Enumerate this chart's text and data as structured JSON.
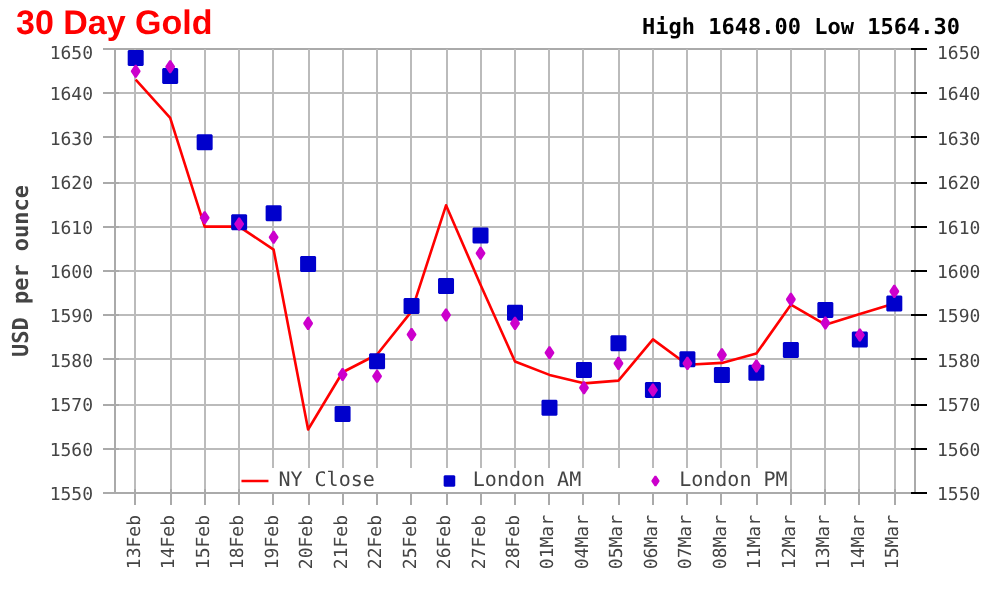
{
  "chart_data": {
    "type": "line",
    "title": "30 Day Gold",
    "subtitle": "High 1648.00 Low 1564.30",
    "ylabel": "USD per ounce",
    "categories": [
      "13Feb",
      "14Feb",
      "15Feb",
      "18Feb",
      "19Feb",
      "20Feb",
      "21Feb",
      "22Feb",
      "25Feb",
      "26Feb",
      "27Feb",
      "28Feb",
      "01Mar",
      "04Mar",
      "05Mar",
      "06Mar",
      "07Mar",
      "08Mar",
      "11Mar",
      "12Mar",
      "13Mar",
      "14Mar",
      "15Mar"
    ],
    "series": [
      {
        "name": "NY Close",
        "color": "#ff0000",
        "marker": "none",
        "values": [
          1643.1,
          1634.5,
          1610,
          1610,
          1604.8,
          1564.3,
          1577.2,
          1581.2,
          1590.9,
          1614.8,
          1596.9,
          1579.6,
          1576.6,
          1574.7,
          1575.3,
          1584.6,
          1578.9,
          1579.3,
          1581.4,
          1592.4,
          1587.9,
          1590.3,
          1592.7
        ]
      },
      {
        "name": "London AM",
        "type": "scatter",
        "color": "#0000cc",
        "marker": "square",
        "values": [
          1648,
          1643.9,
          1629,
          1611,
          1613,
          1601.6,
          1567.8,
          1579.7,
          1592.1,
          1596.6,
          1608,
          1590.6,
          1569.2,
          1577.7,
          1583.7,
          1573.2,
          1580.1,
          1576.6,
          1577.1,
          1582.2,
          1591.2,
          1584.6,
          1592.7
        ]
      },
      {
        "name": "London PM",
        "type": "scatter",
        "color": "#cc00cc",
        "marker": "diamond",
        "values": [
          1645,
          1646,
          1612,
          1610.6,
          1607.6,
          1588.2,
          1576.7,
          1576.3,
          1585.7,
          1590.1,
          1604,
          1588.2,
          1581.6,
          1573.7,
          1579.2,
          1573.2,
          1579.2,
          1581.1,
          1578.6,
          1593.6,
          1588.3,
          1585.6,
          1595.4
        ]
      }
    ],
    "ylim": [
      1550,
      1650
    ],
    "yticks": [
      1550,
      1560,
      1570,
      1580,
      1590,
      1600,
      1610,
      1620,
      1630,
      1640,
      1650
    ],
    "y2lim": [
      1550,
      1650
    ],
    "y2ticks": [
      1550,
      1560,
      1570,
      1580,
      1590,
      1600,
      1610,
      1620,
      1630,
      1640,
      1650
    ],
    "grid": true,
    "legend": "bottom"
  }
}
